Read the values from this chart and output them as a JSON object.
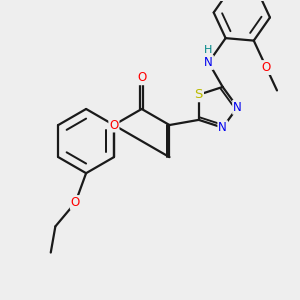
{
  "bg_color": "#eeeeee",
  "bond_color": "#1a1a1a",
  "bond_width": 1.6,
  "atom_colors": {
    "O": "#ff0000",
    "N": "#0000ee",
    "S": "#bbbb00",
    "H": "#008888",
    "C": "#1a1a1a"
  },
  "font_size": 8.5,
  "fig_size": [
    3.0,
    3.0
  ],
  "dpi": 100
}
